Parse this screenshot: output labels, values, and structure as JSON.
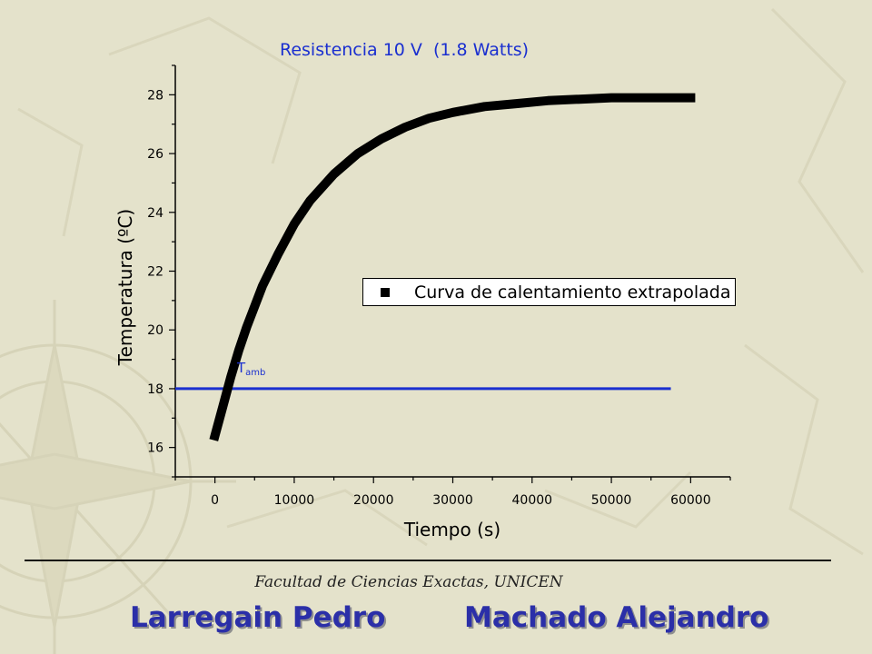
{
  "chart_data": {
    "type": "line",
    "title": "Resistencia 10 V  (1.8 Watts)",
    "xlabel": "Tiempo (s)",
    "ylabel": "Temperatura (ºC)",
    "xlim": [
      -5000,
      65000
    ],
    "ylim": [
      15,
      29
    ],
    "xticks": [
      0,
      10000,
      20000,
      30000,
      40000,
      50000,
      60000
    ],
    "yticks": [
      16,
      18,
      20,
      22,
      24,
      26,
      28
    ],
    "legend": {
      "label": "Curva de calentamiento extrapolada",
      "placement": "center-right"
    },
    "series": [
      {
        "name": "Curva de calentamiento extrapolada",
        "color": "#000000",
        "x": [
          0,
          1000,
          2000,
          3000,
          4000,
          6000,
          8000,
          10000,
          12000,
          15000,
          18000,
          21000,
          24000,
          27000,
          30000,
          34000,
          38000,
          42000,
          46000,
          50000,
          55000,
          60000
        ],
        "y": [
          16.4,
          17.4,
          18.4,
          19.3,
          20.1,
          21.5,
          22.6,
          23.6,
          24.4,
          25.3,
          26.0,
          26.5,
          26.9,
          27.2,
          27.4,
          27.6,
          27.7,
          27.8,
          27.85,
          27.9,
          27.9,
          27.9
        ]
      }
    ],
    "reference_line": {
      "y": 18.0,
      "x_range": [
        -5000,
        57500
      ],
      "color": "#1a2fd0"
    },
    "annotation": {
      "base": "T",
      "subscript": "amb",
      "x": 3000,
      "y": 18.6
    }
  },
  "footer": {
    "faculty": "Facultad de Ciencias Exactas, UNICEN",
    "authors": [
      "Larregain Pedro",
      "Machado Alejandro"
    ]
  },
  "colors": {
    "background": "#e4e2cb",
    "accent": "#1a2fd0",
    "author_text": "#2b2fa8"
  }
}
